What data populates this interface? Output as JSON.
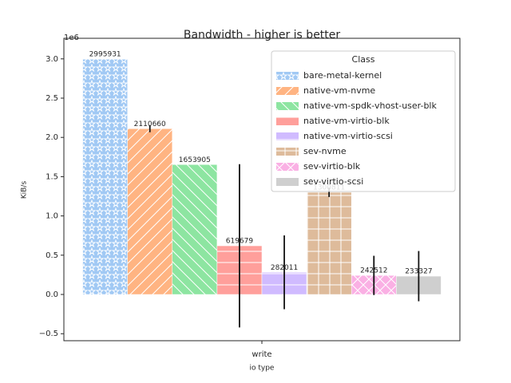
{
  "chart_data": {
    "type": "bar",
    "title": "Bandwidth - higher is better",
    "x_label": "io type",
    "y_label": "KiB/s",
    "y_offset_label": "1e6",
    "categories": [
      "write"
    ],
    "legend_title": "Class",
    "legend": "upper right",
    "series": [
      {
        "name": "bare-metal-kernel",
        "color": "#a1c9f4",
        "hatch": "*",
        "values": [
          2995931
        ],
        "errors": [
          null
        ]
      },
      {
        "name": "native-vm-nvme",
        "color": "#ffb482",
        "hatch": "/",
        "values": [
          2110660
        ],
        "errors": [
          45000
        ]
      },
      {
        "name": "native-vm-spdk-vhost-user-blk",
        "color": "#8de5a1",
        "hatch": "\\",
        "values": [
          1653905
        ],
        "errors": [
          null
        ]
      },
      {
        "name": "native-vm-virtio-blk",
        "color": "#ff9f9b",
        "hatch": "-",
        "values": [
          619679
        ],
        "errors": [
          1040000
        ]
      },
      {
        "name": "native-vm-virtio-scsi",
        "color": "#d0bbff",
        "hatch": "-",
        "values": [
          282011
        ],
        "errors": [
          470000
        ]
      },
      {
        "name": "sev-nvme",
        "color": "#debb9b",
        "hatch": "+",
        "values": [
          1300811
        ],
        "errors": [
          60000
        ]
      },
      {
        "name": "sev-virtio-blk",
        "color": "#fab0e4",
        "hatch": "x",
        "values": [
          242512
        ],
        "errors": [
          250000
        ]
      },
      {
        "name": "sev-virtio-scsi",
        "color": "#cfcfcf",
        "hatch": "",
        "values": [
          233327
        ],
        "errors": [
          320000
        ]
      }
    ],
    "ylim": [
      -589000,
      3262000
    ],
    "yticks": [
      {
        "value": -500000,
        "label": "−0.5"
      },
      {
        "value": 0,
        "label": "0.0"
      },
      {
        "value": 500000,
        "label": "0.5"
      },
      {
        "value": 1000000,
        "label": "1.0"
      },
      {
        "value": 1500000,
        "label": "1.5"
      },
      {
        "value": 2000000,
        "label": "2.0"
      },
      {
        "value": 2500000,
        "label": "2.5"
      },
      {
        "value": 3000000,
        "label": "3.0"
      }
    ]
  }
}
